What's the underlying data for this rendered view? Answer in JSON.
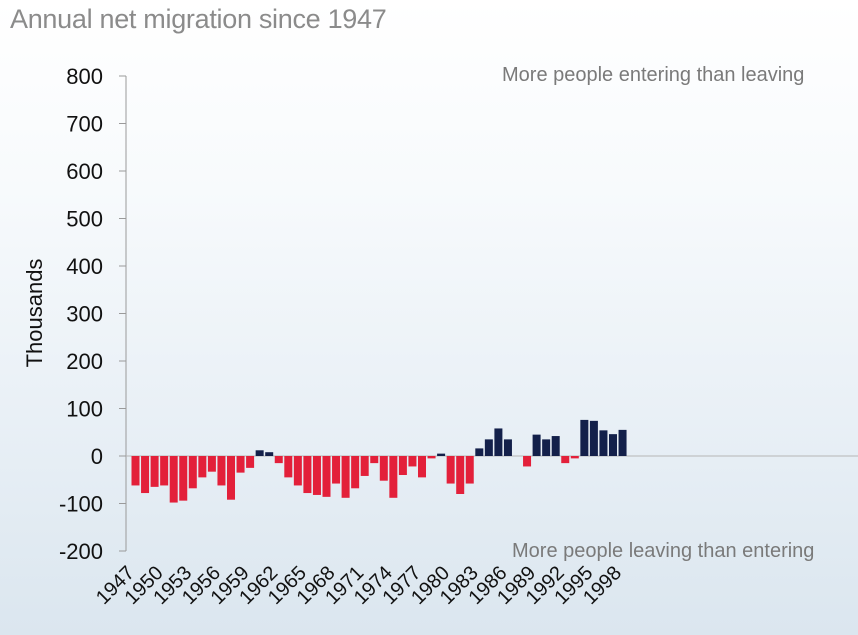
{
  "chart_data": {
    "type": "bar",
    "title": "Annual net migration since 1947",
    "ylabel": "Thousands",
    "xlabel": "",
    "ylim": [
      -200,
      800
    ],
    "yticks": [
      "800",
      "700",
      "600",
      "500",
      "400",
      "300",
      "200",
      "100",
      "0",
      "-100",
      "-200"
    ],
    "ytick_values": [
      800,
      700,
      600,
      500,
      400,
      300,
      200,
      100,
      0,
      -100,
      -200
    ],
    "xtick_labels": [
      "1947",
      "1950",
      "1953",
      "1956",
      "1959",
      "1962",
      "1965",
      "1968",
      "1971",
      "1974",
      "1977",
      "1980",
      "1983",
      "1986",
      "1989",
      "1992",
      "1995",
      "1998"
    ],
    "annotation_top": "More people entering than leaving",
    "annotation_bottom": "More people leaving than entering",
    "colors": {
      "positive": "#13204a",
      "negative": "#e3203a"
    },
    "series": [
      {
        "name": "Net migration",
        "years": [
          1947,
          1948,
          1949,
          1950,
          1951,
          1952,
          1953,
          1954,
          1955,
          1956,
          1957,
          1958,
          1959,
          1960,
          1961,
          1962,
          1963,
          1964,
          1965,
          1966,
          1967,
          1968,
          1969,
          1970,
          1971,
          1972,
          1973,
          1974,
          1975,
          1976,
          1977,
          1978,
          1979,
          1980,
          1981,
          1982,
          1983,
          1984,
          1985,
          1986,
          1987,
          1988,
          1989,
          1990,
          1991,
          1992,
          1993,
          1994,
          1995,
          1996,
          1997,
          1998
        ],
        "values": [
          -62,
          -78,
          -65,
          -62,
          -98,
          -94,
          -68,
          -45,
          -33,
          -62,
          -92,
          -35,
          -25,
          12,
          8,
          -15,
          -45,
          -62,
          -78,
          -82,
          -86,
          -58,
          -88,
          -68,
          -42,
          -15,
          -52,
          -88,
          -40,
          -22,
          -45,
          -5,
          5,
          -58,
          -80,
          -58,
          16,
          35,
          58,
          35,
          0,
          -22,
          45,
          35,
          42,
          -15,
          -5,
          76,
          74,
          54,
          46,
          55
        ]
      }
    ]
  }
}
